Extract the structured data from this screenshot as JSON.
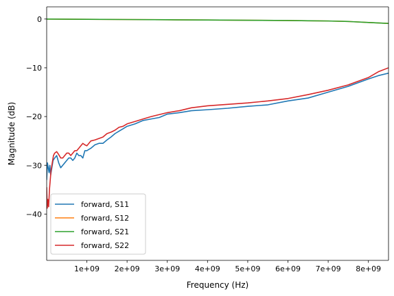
{
  "chart_data": {
    "type": "line",
    "title": "",
    "xlabel": "Frequency (Hz)",
    "ylabel": "Magnitude (dB)",
    "xlim": [
      1000000,
      8500000000
    ],
    "ylim": [
      -49.5,
      2.5
    ],
    "xticks": [
      {
        "value": 1000000000,
        "label": "1e+09"
      },
      {
        "value": 2000000000,
        "label": "2e+09"
      },
      {
        "value": 3000000000,
        "label": "3e+09"
      },
      {
        "value": 4000000000,
        "label": "4e+09"
      },
      {
        "value": 5000000000,
        "label": "5e+09"
      },
      {
        "value": 6000000000,
        "label": "6e+09"
      },
      {
        "value": 7000000000,
        "label": "7e+09"
      },
      {
        "value": 8000000000,
        "label": "8e+09"
      }
    ],
    "yticks": [
      {
        "value": 0,
        "label": "0"
      },
      {
        "value": -10,
        "label": "−10"
      },
      {
        "value": -20,
        "label": "−20"
      },
      {
        "value": -30,
        "label": "−30"
      },
      {
        "value": -40,
        "label": "−40"
      }
    ],
    "grid": false,
    "legend_position": "lower-left",
    "series": [
      {
        "name": "forward, S11",
        "color": "#1f77b4",
        "x": [
          1000000,
          20000000,
          40000000,
          60000000,
          80000000,
          100000000,
          130000000,
          160000000,
          200000000,
          250000000,
          300000000,
          350000000,
          400000000,
          450000000,
          500000000,
          550000000,
          600000000,
          650000000,
          700000000,
          750000000,
          800000000,
          850000000,
          900000000,
          950000000,
          1000000000,
          1100000000,
          1200000000,
          1300000000,
          1400000000,
          1500000000,
          1600000000,
          1700000000,
          1800000000,
          1900000000,
          2000000000,
          2200000000,
          2400000000,
          2600000000,
          2800000000,
          3000000000,
          3300000000,
          3600000000,
          4000000000,
          4500000000,
          5000000000,
          5500000000,
          6000000000,
          6500000000,
          7000000000,
          7500000000,
          8000000000,
          8250000000,
          8500000000
        ],
        "y": [
          -33.0,
          -29.5,
          -30.5,
          -31.5,
          -30.0,
          -32.0,
          -30.5,
          -29.0,
          -28.5,
          -28.0,
          -29.5,
          -30.5,
          -30.0,
          -29.5,
          -29.0,
          -28.5,
          -28.5,
          -29.0,
          -28.5,
          -27.5,
          -28.0,
          -28.0,
          -28.5,
          -27.0,
          -27.0,
          -26.5,
          -25.8,
          -25.5,
          -25.5,
          -24.8,
          -24.2,
          -23.5,
          -23.0,
          -22.5,
          -22.0,
          -21.5,
          -20.8,
          -20.5,
          -20.2,
          -19.5,
          -19.2,
          -18.8,
          -18.6,
          -18.3,
          -17.9,
          -17.6,
          -16.8,
          -16.2,
          -15.0,
          -13.8,
          -12.3,
          -11.6,
          -11.1
        ]
      },
      {
        "name": "forward, S12",
        "color": "#ff7f0e",
        "x": [
          1000000,
          1000000000,
          2000000000,
          3000000000,
          4000000000,
          5000000000,
          6000000000,
          6500000000,
          7000000000,
          7500000000,
          8000000000,
          8500000000
        ],
        "y": [
          0.0,
          -0.05,
          -0.1,
          -0.15,
          -0.2,
          -0.25,
          -0.3,
          -0.35,
          -0.4,
          -0.5,
          -0.7,
          -0.9
        ]
      },
      {
        "name": "forward, S21",
        "color": "#2ca02c",
        "x": [
          1000000,
          1000000000,
          2000000000,
          3000000000,
          4000000000,
          5000000000,
          6000000000,
          6500000000,
          7000000000,
          7500000000,
          8000000000,
          8500000000
        ],
        "y": [
          0.0,
          -0.05,
          -0.1,
          -0.15,
          -0.2,
          -0.25,
          -0.3,
          -0.35,
          -0.4,
          -0.5,
          -0.7,
          -0.9
        ]
      },
      {
        "name": "forward, S22",
        "color": "#d62728",
        "x": [
          1000000,
          15000000,
          30000000,
          50000000,
          70000000,
          90000000,
          110000000,
          140000000,
          170000000,
          200000000,
          250000000,
          300000000,
          350000000,
          400000000,
          450000000,
          500000000,
          550000000,
          600000000,
          650000000,
          700000000,
          750000000,
          800000000,
          850000000,
          900000000,
          950000000,
          1000000000,
          1100000000,
          1200000000,
          1300000000,
          1400000000,
          1500000000,
          1600000000,
          1700000000,
          1800000000,
          1900000000,
          2000000000,
          2200000000,
          2400000000,
          2600000000,
          2800000000,
          3000000000,
          3300000000,
          3600000000,
          4000000000,
          4500000000,
          5000000000,
          5500000000,
          6000000000,
          6500000000,
          7000000000,
          7500000000,
          8000000000,
          8250000000,
          8500000000
        ],
        "y": [
          -34.5,
          -38.8,
          -37.0,
          -38.5,
          -35.0,
          -33.0,
          -31.0,
          -29.5,
          -28.0,
          -27.5,
          -27.2,
          -27.8,
          -28.5,
          -28.5,
          -28.0,
          -27.5,
          -27.5,
          -28.0,
          -27.5,
          -27.0,
          -27.0,
          -26.5,
          -26.0,
          -25.5,
          -25.8,
          -26.0,
          -25.0,
          -24.8,
          -24.5,
          -24.2,
          -23.5,
          -23.2,
          -22.8,
          -22.2,
          -22.0,
          -21.5,
          -21.0,
          -20.5,
          -20.0,
          -19.6,
          -19.2,
          -18.8,
          -18.2,
          -17.8,
          -17.5,
          -17.2,
          -16.8,
          -16.3,
          -15.5,
          -14.6,
          -13.5,
          -12.0,
          -10.8,
          -10.0
        ]
      }
    ]
  }
}
